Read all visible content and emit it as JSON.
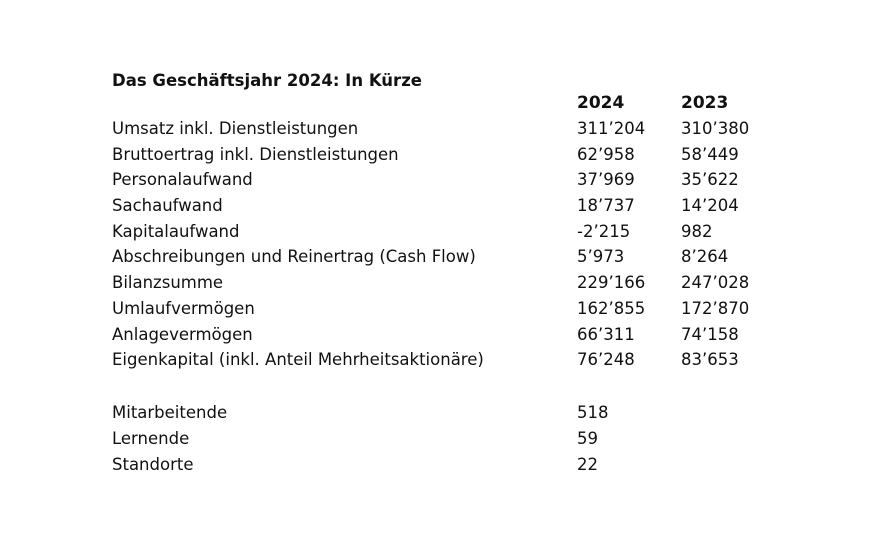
{
  "title": "Das Geschäftsjahr 2024: In Kürze",
  "columns": [
    "2024",
    "2023"
  ],
  "financials": [
    {
      "label": "Umsatz inkl. Dienstleistungen",
      "v2024": "311’204",
      "v2023": "310’380"
    },
    {
      "label": "Bruttoertrag inkl. Dienstleistungen",
      "v2024": "62’958",
      "v2023": "58’449"
    },
    {
      "label": "Personalaufwand",
      "v2024": "37’969",
      "v2023": "35’622"
    },
    {
      "label": "Sachaufwand",
      "v2024": "18’737",
      "v2023": "14’204"
    },
    {
      "label": "Kapitalaufwand",
      "v2024": "-2’215",
      "v2023": "982"
    },
    {
      "label": "Abschreibungen und Reinertrag (Cash Flow)",
      "v2024": "5’973",
      "v2023": "8’264"
    },
    {
      "label": "Bilanzsumme",
      "v2024": "229’166",
      "v2023": "247’028"
    },
    {
      "label": "Umlaufvermögen",
      "v2024": "162’855",
      "v2023": "172’870"
    },
    {
      "label": "Anlagevermögen",
      "v2024": "66’311",
      "v2023": "74’158"
    },
    {
      "label": "Eigenkapital (inkl. Anteil Mehrheitsaktionäre)",
      "v2024": "76’248",
      "v2023": "83’653"
    }
  ],
  "staff": [
    {
      "label": "Mitarbeitende",
      "v2024": "518"
    },
    {
      "label": "Lernende",
      "v2024": "59"
    },
    {
      "label": "Standorte",
      "v2024": "22"
    }
  ]
}
